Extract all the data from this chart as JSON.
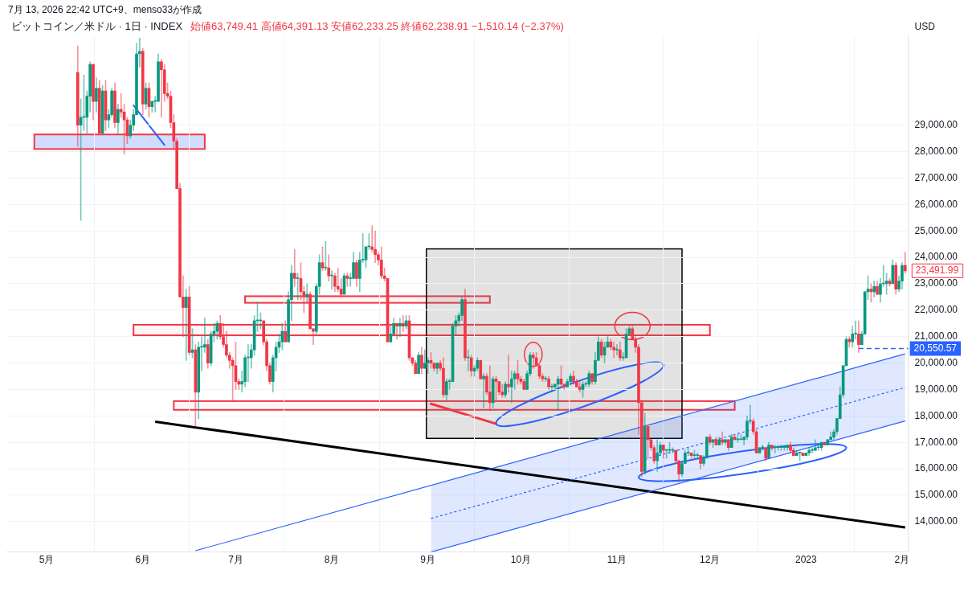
{
  "chart_data": {
    "type": "candlestick",
    "title": "ビットコイン／米ドル · 1日 · INDEX",
    "subtitle": "始値63,749.41 高値64,391.13 安値62,233.25 終値62,238.91 −1,510.14 (−2.37%)",
    "ylabel": "USD",
    "annotations": [
      "7月 13, 2026 22:42 UTC+9、menso33が作成",
      {
        "text": "23,491.99",
        "x": "2023-02-02",
        "y": 23491.99
      }
    ],
    "x": [
      "2022-05-11",
      "2022-05-12",
      "2022-05-13",
      "2022-05-14",
      "2022-05-15",
      "2022-05-16",
      "2022-05-17",
      "2022-05-18",
      "2022-05-19",
      "2022-05-20",
      "2022-05-21",
      "2022-05-22",
      "2022-05-23",
      "2022-05-24",
      "2022-05-25",
      "2022-05-26",
      "2022-05-27",
      "2022-05-28",
      "2022-05-29",
      "2022-05-30",
      "2022-05-31",
      "2022-06-01",
      "2022-06-02",
      "2022-06-03",
      "2022-06-04",
      "2022-06-05",
      "2022-06-06",
      "2022-06-07",
      "2022-06-08",
      "2022-06-09",
      "2022-06-10",
      "2022-06-11",
      "2022-06-12",
      "2022-06-13",
      "2022-06-14",
      "2022-06-15",
      "2022-06-16",
      "2022-06-17",
      "2022-06-18",
      "2022-06-19",
      "2022-06-20",
      "2022-06-21",
      "2022-06-22",
      "2022-06-23",
      "2022-06-24",
      "2022-06-25",
      "2022-06-26",
      "2022-06-27",
      "2022-06-28",
      "2022-06-29",
      "2022-06-30",
      "2022-07-01",
      "2022-07-02",
      "2022-07-03",
      "2022-07-04",
      "2022-07-05",
      "2022-07-06",
      "2022-07-07",
      "2022-07-08",
      "2022-07-09",
      "2022-07-10",
      "2022-07-11",
      "2022-07-12",
      "2022-07-13",
      "2022-07-14",
      "2022-07-15",
      "2022-07-16",
      "2022-07-17",
      "2022-07-18",
      "2022-07-19",
      "2022-07-20",
      "2022-07-21",
      "2022-07-22",
      "2022-07-23",
      "2022-07-24",
      "2022-07-25",
      "2022-07-26",
      "2022-07-27",
      "2022-07-28",
      "2022-07-29",
      "2022-07-30",
      "2022-07-31",
      "2022-08-01",
      "2022-08-02",
      "2022-08-03",
      "2022-08-04",
      "2022-08-05",
      "2022-08-06",
      "2022-08-07",
      "2022-08-08",
      "2022-08-09",
      "2022-08-10",
      "2022-08-11",
      "2022-08-12",
      "2022-08-13",
      "2022-08-14",
      "2022-08-15",
      "2022-08-16",
      "2022-08-17",
      "2022-08-18",
      "2022-08-19",
      "2022-08-20",
      "2022-08-21",
      "2022-08-22",
      "2022-08-23",
      "2022-08-24",
      "2022-08-25",
      "2022-08-26",
      "2022-08-27",
      "2022-08-28",
      "2022-08-29",
      "2022-08-30",
      "2022-08-31",
      "2022-09-01",
      "2022-09-02",
      "2022-09-03",
      "2022-09-04",
      "2022-09-05",
      "2022-09-06",
      "2022-09-07",
      "2022-09-08",
      "2022-09-09",
      "2022-09-10",
      "2022-09-11",
      "2022-09-12",
      "2022-09-13",
      "2022-09-14",
      "2022-09-15",
      "2022-09-16",
      "2022-09-17",
      "2022-09-18",
      "2022-09-19",
      "2022-09-20",
      "2022-09-21",
      "2022-09-22",
      "2022-09-23",
      "2022-09-24",
      "2022-09-25",
      "2022-09-26",
      "2022-09-27",
      "2022-09-28",
      "2022-09-29",
      "2022-09-30",
      "2022-10-01",
      "2022-10-02",
      "2022-10-03",
      "2022-10-04",
      "2022-10-05",
      "2022-10-06",
      "2022-10-07",
      "2022-10-08",
      "2022-10-09",
      "2022-10-10",
      "2022-10-11",
      "2022-10-12",
      "2022-10-13",
      "2022-10-14",
      "2022-10-15",
      "2022-10-16",
      "2022-10-17",
      "2022-10-18",
      "2022-10-19",
      "2022-10-20",
      "2022-10-21",
      "2022-10-22",
      "2022-10-23",
      "2022-10-24",
      "2022-10-25",
      "2022-10-26",
      "2022-10-27",
      "2022-10-28",
      "2022-10-29",
      "2022-10-30",
      "2022-10-31",
      "2022-11-01",
      "2022-11-02",
      "2022-11-03",
      "2022-11-04",
      "2022-11-05",
      "2022-11-06",
      "2022-11-07",
      "2022-11-08",
      "2022-11-09",
      "2022-11-10",
      "2022-11-11",
      "2022-11-12",
      "2022-11-13",
      "2022-11-14",
      "2022-11-15",
      "2022-11-16",
      "2022-11-17",
      "2022-11-18",
      "2022-11-19",
      "2022-11-20",
      "2022-11-21",
      "2022-11-22",
      "2022-11-23",
      "2022-11-24",
      "2022-11-25",
      "2022-11-26",
      "2022-11-27",
      "2022-11-28",
      "2022-11-29",
      "2022-11-30",
      "2022-12-01",
      "2022-12-02",
      "2022-12-03",
      "2022-12-04",
      "2022-12-05",
      "2022-12-06",
      "2022-12-07",
      "2022-12-08",
      "2022-12-09",
      "2022-12-10",
      "2022-12-11",
      "2022-12-12",
      "2022-12-13",
      "2022-12-14",
      "2022-12-15",
      "2022-12-16",
      "2022-12-17",
      "2022-12-18",
      "2022-12-19",
      "2022-12-20",
      "2022-12-21",
      "2022-12-22",
      "2022-12-23",
      "2022-12-24",
      "2022-12-25",
      "2022-12-26",
      "2022-12-27",
      "2022-12-28",
      "2022-12-29",
      "2022-12-30",
      "2022-12-31",
      "2023-01-01",
      "2023-01-02",
      "2023-01-03",
      "2023-01-04",
      "2023-01-05",
      "2023-01-06",
      "2023-01-07",
      "2023-01-08",
      "2023-01-09",
      "2023-01-10",
      "2023-01-11",
      "2023-01-12",
      "2023-01-13",
      "2023-01-14",
      "2023-01-15",
      "2023-01-16",
      "2023-01-17",
      "2023-01-18",
      "2023-01-19",
      "2023-01-20",
      "2023-01-21",
      "2023-01-22",
      "2023-01-23",
      "2023-01-24",
      "2023-01-25",
      "2023-01-26",
      "2023-01-27",
      "2023-01-28",
      "2023-01-29",
      "2023-01-30",
      "2023-01-31",
      "2023-02-01",
      "2023-02-02"
    ],
    "ohlc": [
      [
        31000,
        32000,
        28200,
        29000
      ],
      [
        29000,
        30000,
        25400,
        29300
      ],
      [
        29300,
        30900,
        28800,
        29300
      ],
      [
        29300,
        30300,
        28700,
        30100
      ],
      [
        30100,
        31400,
        29500,
        31300
      ],
      [
        31300,
        31300,
        29200,
        29900
      ],
      [
        29900,
        30800,
        29500,
        30400
      ],
      [
        30400,
        30700,
        28700,
        28700
      ],
      [
        28700,
        30500,
        28700,
        30300
      ],
      [
        30300,
        30700,
        28800,
        29200
      ],
      [
        29200,
        29600,
        28900,
        29400
      ],
      [
        29400,
        30400,
        29300,
        30300
      ],
      [
        30300,
        30600,
        28900,
        29100
      ],
      [
        29100,
        29800,
        28700,
        29600
      ],
      [
        29600,
        30200,
        29300,
        29500
      ],
      [
        29500,
        29800,
        27900,
        29200
      ],
      [
        29200,
        29300,
        28300,
        28600
      ],
      [
        28600,
        29200,
        28500,
        29000
      ],
      [
        29000,
        29600,
        28800,
        29400
      ],
      [
        29400,
        32100,
        29400,
        31700
      ],
      [
        31700,
        32300,
        31200,
        31800
      ],
      [
        31800,
        31900,
        29400,
        29800
      ],
      [
        29800,
        30600,
        29600,
        30400
      ],
      [
        30400,
        30600,
        29300,
        29700
      ],
      [
        29700,
        29900,
        29500,
        29900
      ],
      [
        29900,
        30100,
        29500,
        29900
      ],
      [
        29900,
        31700,
        29900,
        31400
      ],
      [
        31400,
        31500,
        29300,
        31100
      ],
      [
        31100,
        31300,
        29900,
        30200
      ],
      [
        30200,
        30600,
        30000,
        30100
      ],
      [
        30100,
        30300,
        28900,
        29100
      ],
      [
        29100,
        29400,
        28100,
        28400
      ],
      [
        28400,
        28500,
        26600,
        26600
      ],
      [
        26600,
        26800,
        22500,
        22500
      ],
      [
        22500,
        23300,
        21000,
        22100
      ],
      [
        22100,
        22800,
        20100,
        22500
      ],
      [
        22500,
        22900,
        20300,
        20400
      ],
      [
        20400,
        21300,
        20200,
        20500
      ],
      [
        20500,
        20700,
        17600,
        18900
      ],
      [
        18900,
        20800,
        17900,
        20600
      ],
      [
        20600,
        21000,
        19700,
        20600
      ],
      [
        20600,
        21700,
        20400,
        20700
      ],
      [
        20700,
        20900,
        19800,
        20000
      ],
      [
        20000,
        21200,
        19900,
        21100
      ],
      [
        21100,
        21500,
        20800,
        21200
      ],
      [
        21200,
        21600,
        20900,
        21500
      ],
      [
        21500,
        21800,
        20900,
        21000
      ],
      [
        21000,
        21500,
        20600,
        20700
      ],
      [
        20700,
        21200,
        20200,
        20300
      ],
      [
        20300,
        20400,
        19800,
        20100
      ],
      [
        20100,
        20200,
        18600,
        19900
      ],
      [
        19900,
        20800,
        19000,
        19300
      ],
      [
        19300,
        19400,
        19000,
        19200
      ],
      [
        19200,
        19700,
        18900,
        19300
      ],
      [
        19300,
        20300,
        19100,
        20200
      ],
      [
        20200,
        20700,
        19300,
        20200
      ],
      [
        20200,
        20700,
        19800,
        20500
      ],
      [
        20500,
        21800,
        20300,
        21600
      ],
      [
        21600,
        22300,
        21200,
        21600
      ],
      [
        21600,
        21900,
        21300,
        21600
      ],
      [
        21600,
        21600,
        20700,
        20800
      ],
      [
        20800,
        20900,
        19700,
        19900
      ],
      [
        19900,
        20000,
        19200,
        19300
      ],
      [
        19300,
        20300,
        18900,
        20200
      ],
      [
        20200,
        20800,
        19700,
        20600
      ],
      [
        20600,
        21100,
        20400,
        20800
      ],
      [
        20800,
        21500,
        20500,
        21200
      ],
      [
        21200,
        21600,
        20800,
        20800
      ],
      [
        20800,
        22700,
        20800,
        22400
      ],
      [
        22400,
        23700,
        21600,
        23400
      ],
      [
        23400,
        24300,
        22900,
        23200
      ],
      [
        23200,
        23400,
        22400,
        23200
      ],
      [
        23200,
        23800,
        22400,
        22700
      ],
      [
        22700,
        22900,
        21900,
        22500
      ],
      [
        22500,
        23000,
        22300,
        22600
      ],
      [
        22600,
        22700,
        21300,
        21300
      ],
      [
        21300,
        21300,
        20700,
        21200
      ],
      [
        21200,
        23000,
        21100,
        22900
      ],
      [
        22900,
        24100,
        22600,
        23800
      ],
      [
        23800,
        24400,
        23500,
        23600
      ],
      [
        23600,
        24600,
        23500,
        23600
      ],
      [
        23600,
        24100,
        23100,
        23300
      ],
      [
        23300,
        23500,
        22800,
        23300
      ],
      [
        23300,
        23400,
        22700,
        22900
      ],
      [
        22900,
        23600,
        22700,
        22800
      ],
      [
        22800,
        23200,
        22500,
        22600
      ],
      [
        22600,
        23400,
        22600,
        23300
      ],
      [
        23300,
        23400,
        22900,
        23200
      ],
      [
        23200,
        23400,
        22900,
        23200
      ],
      [
        23200,
        24200,
        23200,
        23800
      ],
      [
        23800,
        23900,
        22900,
        23200
      ],
      [
        23200,
        24200,
        22700,
        23900
      ],
      [
        23900,
        24900,
        23800,
        23900
      ],
      [
        23900,
        24400,
        23600,
        24400
      ],
      [
        24400,
        24900,
        24300,
        24400
      ],
      [
        24400,
        25200,
        24200,
        24300
      ],
      [
        24300,
        25000,
        23800,
        24100
      ],
      [
        24100,
        24200,
        23700,
        23900
      ],
      [
        23900,
        24400,
        23200,
        23300
      ],
      [
        23300,
        23600,
        23100,
        23200
      ],
      [
        23200,
        23200,
        20800,
        20800
      ],
      [
        20800,
        21400,
        20800,
        21100
      ],
      [
        21100,
        21700,
        21100,
        21500
      ],
      [
        21500,
        21500,
        20900,
        21400
      ],
      [
        21400,
        21700,
        21000,
        21500
      ],
      [
        21500,
        21800,
        21200,
        21400
      ],
      [
        21400,
        21800,
        21300,
        21600
      ],
      [
        21600,
        21800,
        20100,
        20200
      ],
      [
        20200,
        20200,
        19900,
        20000
      ],
      [
        20000,
        20100,
        19600,
        19600
      ],
      [
        19600,
        20400,
        19600,
        20300
      ],
      [
        20300,
        20600,
        19600,
        19800
      ],
      [
        19800,
        20500,
        19800,
        20000
      ],
      [
        20000,
        20200,
        19600,
        20100
      ],
      [
        20100,
        20400,
        19800,
        20000
      ],
      [
        20000,
        20000,
        19700,
        19800
      ],
      [
        19800,
        20000,
        19600,
        20000
      ],
      [
        20000,
        20100,
        19700,
        19800
      ],
      [
        19800,
        20200,
        18700,
        18800
      ],
      [
        18800,
        19400,
        18600,
        19300
      ],
      [
        19300,
        19400,
        19000,
        19300
      ],
      [
        19300,
        21500,
        19300,
        21400
      ],
      [
        21400,
        21800,
        21100,
        21600
      ],
      [
        21600,
        21900,
        21400,
        21800
      ],
      [
        21800,
        22500,
        21600,
        22400
      ],
      [
        22400,
        22800,
        20100,
        20200
      ],
      [
        20200,
        20500,
        19700,
        20200
      ],
      [
        20200,
        20300,
        19500,
        19700
      ],
      [
        19700,
        19900,
        19500,
        19800
      ],
      [
        19800,
        20200,
        19700,
        20100
      ],
      [
        20100,
        20100,
        19400,
        19400
      ],
      [
        19400,
        19600,
        18300,
        19500
      ],
      [
        19500,
        19600,
        18800,
        18900
      ],
      [
        18900,
        19900,
        18200,
        18500
      ],
      [
        18500,
        19500,
        18300,
        19400
      ],
      [
        19400,
        19500,
        18600,
        19300
      ],
      [
        19300,
        19300,
        18800,
        18900
      ],
      [
        18900,
        19200,
        18700,
        18800
      ],
      [
        18800,
        19300,
        18700,
        19200
      ],
      [
        19200,
        20300,
        18900,
        19100
      ],
      [
        19100,
        19700,
        18500,
        19400
      ],
      [
        19400,
        19700,
        19000,
        19600
      ],
      [
        19600,
        20100,
        19200,
        19400
      ],
      [
        19400,
        19500,
        19200,
        19300
      ],
      [
        19300,
        19400,
        19000,
        19000
      ],
      [
        19000,
        19700,
        19000,
        19600
      ],
      [
        19600,
        20400,
        19500,
        20300
      ],
      [
        20300,
        20400,
        19800,
        20200
      ],
      [
        20200,
        20400,
        19900,
        19900
      ],
      [
        19900,
        20000,
        19400,
        19500
      ],
      [
        19500,
        19600,
        19300,
        19400
      ],
      [
        19400,
        19500,
        19300,
        19400
      ],
      [
        19400,
        19500,
        19000,
        19100
      ],
      [
        19100,
        19200,
        18900,
        19100
      ],
      [
        19100,
        19200,
        19000,
        19200
      ],
      [
        19200,
        19500,
        18200,
        19400
      ],
      [
        19400,
        19900,
        19100,
        19200
      ],
      [
        19200,
        19200,
        19000,
        19100
      ],
      [
        19100,
        19400,
        19100,
        19300
      ],
      [
        19300,
        19600,
        19200,
        19500
      ],
      [
        19500,
        19700,
        19200,
        19300
      ],
      [
        19300,
        19400,
        19100,
        19100
      ],
      [
        19100,
        19300,
        18900,
        19000
      ],
      [
        19000,
        19300,
        18700,
        19200
      ],
      [
        19200,
        19300,
        19100,
        19200
      ],
      [
        19200,
        19700,
        19100,
        19600
      ],
      [
        19600,
        19600,
        19200,
        19300
      ],
      [
        19300,
        20400,
        19200,
        20100
      ],
      [
        20100,
        21000,
        20100,
        20800
      ],
      [
        20800,
        20900,
        20200,
        20300
      ],
      [
        20300,
        20800,
        20000,
        20600
      ],
      [
        20600,
        21000,
        20600,
        20800
      ],
      [
        20800,
        20900,
        20500,
        20600
      ],
      [
        20600,
        20800,
        20200,
        20500
      ],
      [
        20500,
        20700,
        20300,
        20500
      ],
      [
        20500,
        20800,
        20100,
        20200
      ],
      [
        20200,
        20400,
        20100,
        20200
      ],
      [
        20200,
        21300,
        20200,
        21100
      ],
      [
        21100,
        21400,
        21100,
        21300
      ],
      [
        21300,
        21400,
        20900,
        20900
      ],
      [
        20900,
        21000,
        20400,
        20600
      ],
      [
        20600,
        20700,
        17300,
        18500
      ],
      [
        18500,
        18600,
        15700,
        15900
      ],
      [
        15900,
        18100,
        15800,
        17600
      ],
      [
        17600,
        17600,
        16400,
        17100
      ],
      [
        17100,
        17100,
        16700,
        16800
      ],
      [
        16800,
        16900,
        16200,
        16300
      ],
      [
        16300,
        17100,
        15900,
        16600
      ],
      [
        16600,
        17000,
        16500,
        16900
      ],
      [
        16900,
        16900,
        16400,
        16700
      ],
      [
        16700,
        16700,
        16400,
        16700
      ],
      [
        16700,
        17000,
        16600,
        16700
      ],
      [
        16700,
        16800,
        16600,
        16700
      ],
      [
        16700,
        16700,
        16200,
        16300
      ],
      [
        16300,
        16300,
        15500,
        15800
      ],
      [
        15800,
        16300,
        15700,
        16200
      ],
      [
        16200,
        16700,
        16200,
        16600
      ],
      [
        16600,
        16800,
        16500,
        16600
      ],
      [
        16600,
        16600,
        16400,
        16500
      ],
      [
        16500,
        16700,
        16400,
        16500
      ],
      [
        16500,
        16600,
        16400,
        16500
      ],
      [
        16500,
        16500,
        16000,
        16200
      ],
      [
        16200,
        16500,
        16100,
        16400
      ],
      [
        16400,
        17200,
        16400,
        17200
      ],
      [
        17200,
        17300,
        16900,
        17000
      ],
      [
        17000,
        17100,
        16800,
        17100
      ],
      [
        17100,
        17200,
        16900,
        16900
      ],
      [
        16900,
        17200,
        16900,
        17100
      ],
      [
        17100,
        17400,
        16900,
        17000
      ],
      [
        17000,
        17100,
        16900,
        17100
      ],
      [
        17100,
        17100,
        16700,
        16800
      ],
      [
        16800,
        17300,
        16800,
        17200
      ],
      [
        17200,
        17300,
        17100,
        17100
      ],
      [
        17100,
        17300,
        17000,
        17100
      ],
      [
        17100,
        17300,
        17100,
        17100
      ],
      [
        17100,
        17200,
        16900,
        17200
      ],
      [
        17200,
        18000,
        17100,
        17800
      ],
      [
        17800,
        18400,
        17700,
        17800
      ],
      [
        17800,
        17900,
        17300,
        17400
      ],
      [
        17400,
        17500,
        16600,
        16600
      ],
      [
        16600,
        16800,
        16600,
        16800
      ],
      [
        16800,
        16900,
        16700,
        16800
      ],
      [
        16800,
        16800,
        16300,
        16400
      ],
      [
        16400,
        17000,
        16400,
        16900
      ],
      [
        16900,
        16900,
        16700,
        16800
      ],
      [
        16800,
        16900,
        16600,
        16800
      ],
      [
        16800,
        16900,
        16700,
        16800
      ],
      [
        16800,
        16900,
        16700,
        16800
      ],
      [
        16800,
        16900,
        16700,
        16800
      ],
      [
        16800,
        16900,
        16700,
        16900
      ],
      [
        16900,
        17000,
        16600,
        16700
      ],
      [
        16700,
        16800,
        16500,
        16500
      ],
      [
        16500,
        16700,
        16500,
        16600
      ],
      [
        16600,
        16600,
        16300,
        16600
      ],
      [
        16600,
        16600,
        16500,
        16500
      ],
      [
        16500,
        16600,
        16500,
        16600
      ],
      [
        16600,
        16800,
        16500,
        16700
      ],
      [
        16700,
        16800,
        16600,
        16700
      ],
      [
        16700,
        17100,
        16700,
        16800
      ],
      [
        16800,
        16900,
        16700,
        16800
      ],
      [
        16800,
        17000,
        16700,
        17000
      ],
      [
        17000,
        17000,
        16900,
        16900
      ],
      [
        16900,
        17100,
        16900,
        17100
      ],
      [
        17100,
        17400,
        17100,
        17200
      ],
      [
        17200,
        17500,
        17100,
        17400
      ],
      [
        17400,
        17900,
        17300,
        17900
      ],
      [
        17900,
        19100,
        17900,
        18800
      ],
      [
        18800,
        19900,
        18700,
        19900
      ],
      [
        19900,
        21000,
        19900,
        20900
      ],
      [
        20900,
        21000,
        20600,
        20800
      ],
      [
        20800,
        21400,
        20600,
        21100
      ],
      [
        21100,
        21600,
        20900,
        21100
      ],
      [
        21100,
        21600,
        20400,
        20700
      ],
      [
        20700,
        21200,
        20700,
        21100
      ],
      [
        21100,
        22700,
        21100,
        22700
      ],
      [
        22700,
        23300,
        22400,
        22800
      ],
      [
        22800,
        23000,
        22300,
        22700
      ],
      [
        22700,
        23100,
        22500,
        22900
      ],
      [
        22900,
        23100,
        22600,
        22600
      ],
      [
        22600,
        23200,
        22300,
        23000
      ],
      [
        23000,
        23700,
        22900,
        23000
      ],
      [
        23000,
        23400,
        22600,
        23100
      ],
      [
        23100,
        23200,
        22900,
        23000
      ],
      [
        23000,
        23900,
        23000,
        23700
      ],
      [
        23700,
        23800,
        22600,
        22800
      ],
      [
        22800,
        23300,
        22700,
        23100
      ],
      [
        23100,
        23800,
        22800,
        23700
      ],
      [
        23700,
        24200,
        23400,
        23491.99
      ]
    ],
    "series": [
      {
        "type": "line",
        "color": "#2962ff",
        "line_style": "dashed",
        "x": [
          "2022-09-02",
          "2023-02-02"
        ],
        "values": [
          14120,
          19080
        ],
        "lower": [
          12850,
          17810
        ],
        "upper": [
          15390,
          20350
        ]
      },
      {
        "type": "line",
        "color": "#2962ff",
        "x": [
          "2022-06-18",
          "2023-02-02"
        ],
        "values": [
          12900,
          20350
        ]
      },
      {
        "type": "line",
        "color": "#2962ff",
        "x": [
          "2022-09-02",
          "2023-02-02"
        ],
        "values": [
          12850,
          17810
        ]
      },
      {
        "type": "line",
        "color": "#000000",
        "x": [
          "2022-06-05",
          "2023-02-02"
        ],
        "values": [
          17780,
          13780
        ]
      }
    ],
    "xlim": [
      "2022-04-18",
      "2023-02-03"
    ],
    "xticks": [
      {
        "value": "2022-05-01",
        "label": "5月"
      },
      {
        "value": "2022-06-01",
        "label": "6月"
      },
      {
        "value": "2022-07-01",
        "label": "7月"
      },
      {
        "value": "2022-08-01",
        "label": "8月"
      },
      {
        "value": "2022-09-01",
        "label": "9月"
      },
      {
        "value": "2022-10-01",
        "label": "10月"
      },
      {
        "value": "2022-11-01",
        "label": "11月"
      },
      {
        "value": "2022-12-01",
        "label": "12月"
      },
      {
        "value": "2023-01-01",
        "label": "2023"
      },
      {
        "value": "2023-02-01",
        "label": "2月"
      }
    ],
    "ylim": [
      12850,
      32400
    ],
    "yticks": [
      {
        "value": 14000,
        "label": "14,000.00"
      },
      {
        "value": 15000,
        "label": "15,000.00"
      },
      {
        "value": 16000,
        "label": "16,000.00"
      },
      {
        "value": 17000,
        "label": "17,000.00"
      },
      {
        "value": 18000,
        "label": "18,000.00"
      },
      {
        "value": 19000,
        "label": "19,000.00"
      },
      {
        "value": 20000,
        "label": "20,000.00"
      },
      {
        "value": 21000,
        "label": "21,000.00"
      },
      {
        "value": 22000,
        "label": "22,000.00"
      },
      {
        "value": 23000,
        "label": "23,000.00"
      },
      {
        "value": 24000,
        "label": "24,000.00"
      },
      {
        "value": 25000,
        "label": "25,000.00"
      },
      {
        "value": 26000,
        "label": "26,000.00"
      },
      {
        "value": 27000,
        "label": "27,000.00"
      },
      {
        "value": 28000,
        "label": "28,000.00"
      },
      {
        "value": 29000,
        "label": "29,000.00"
      }
    ],
    "ref_lines": [
      {
        "axis": "y",
        "value": 20550.57,
        "label": "20,550.57",
        "color": "#2962ff",
        "line_style": "dashed"
      }
    ],
    "grid": true
  }
}
